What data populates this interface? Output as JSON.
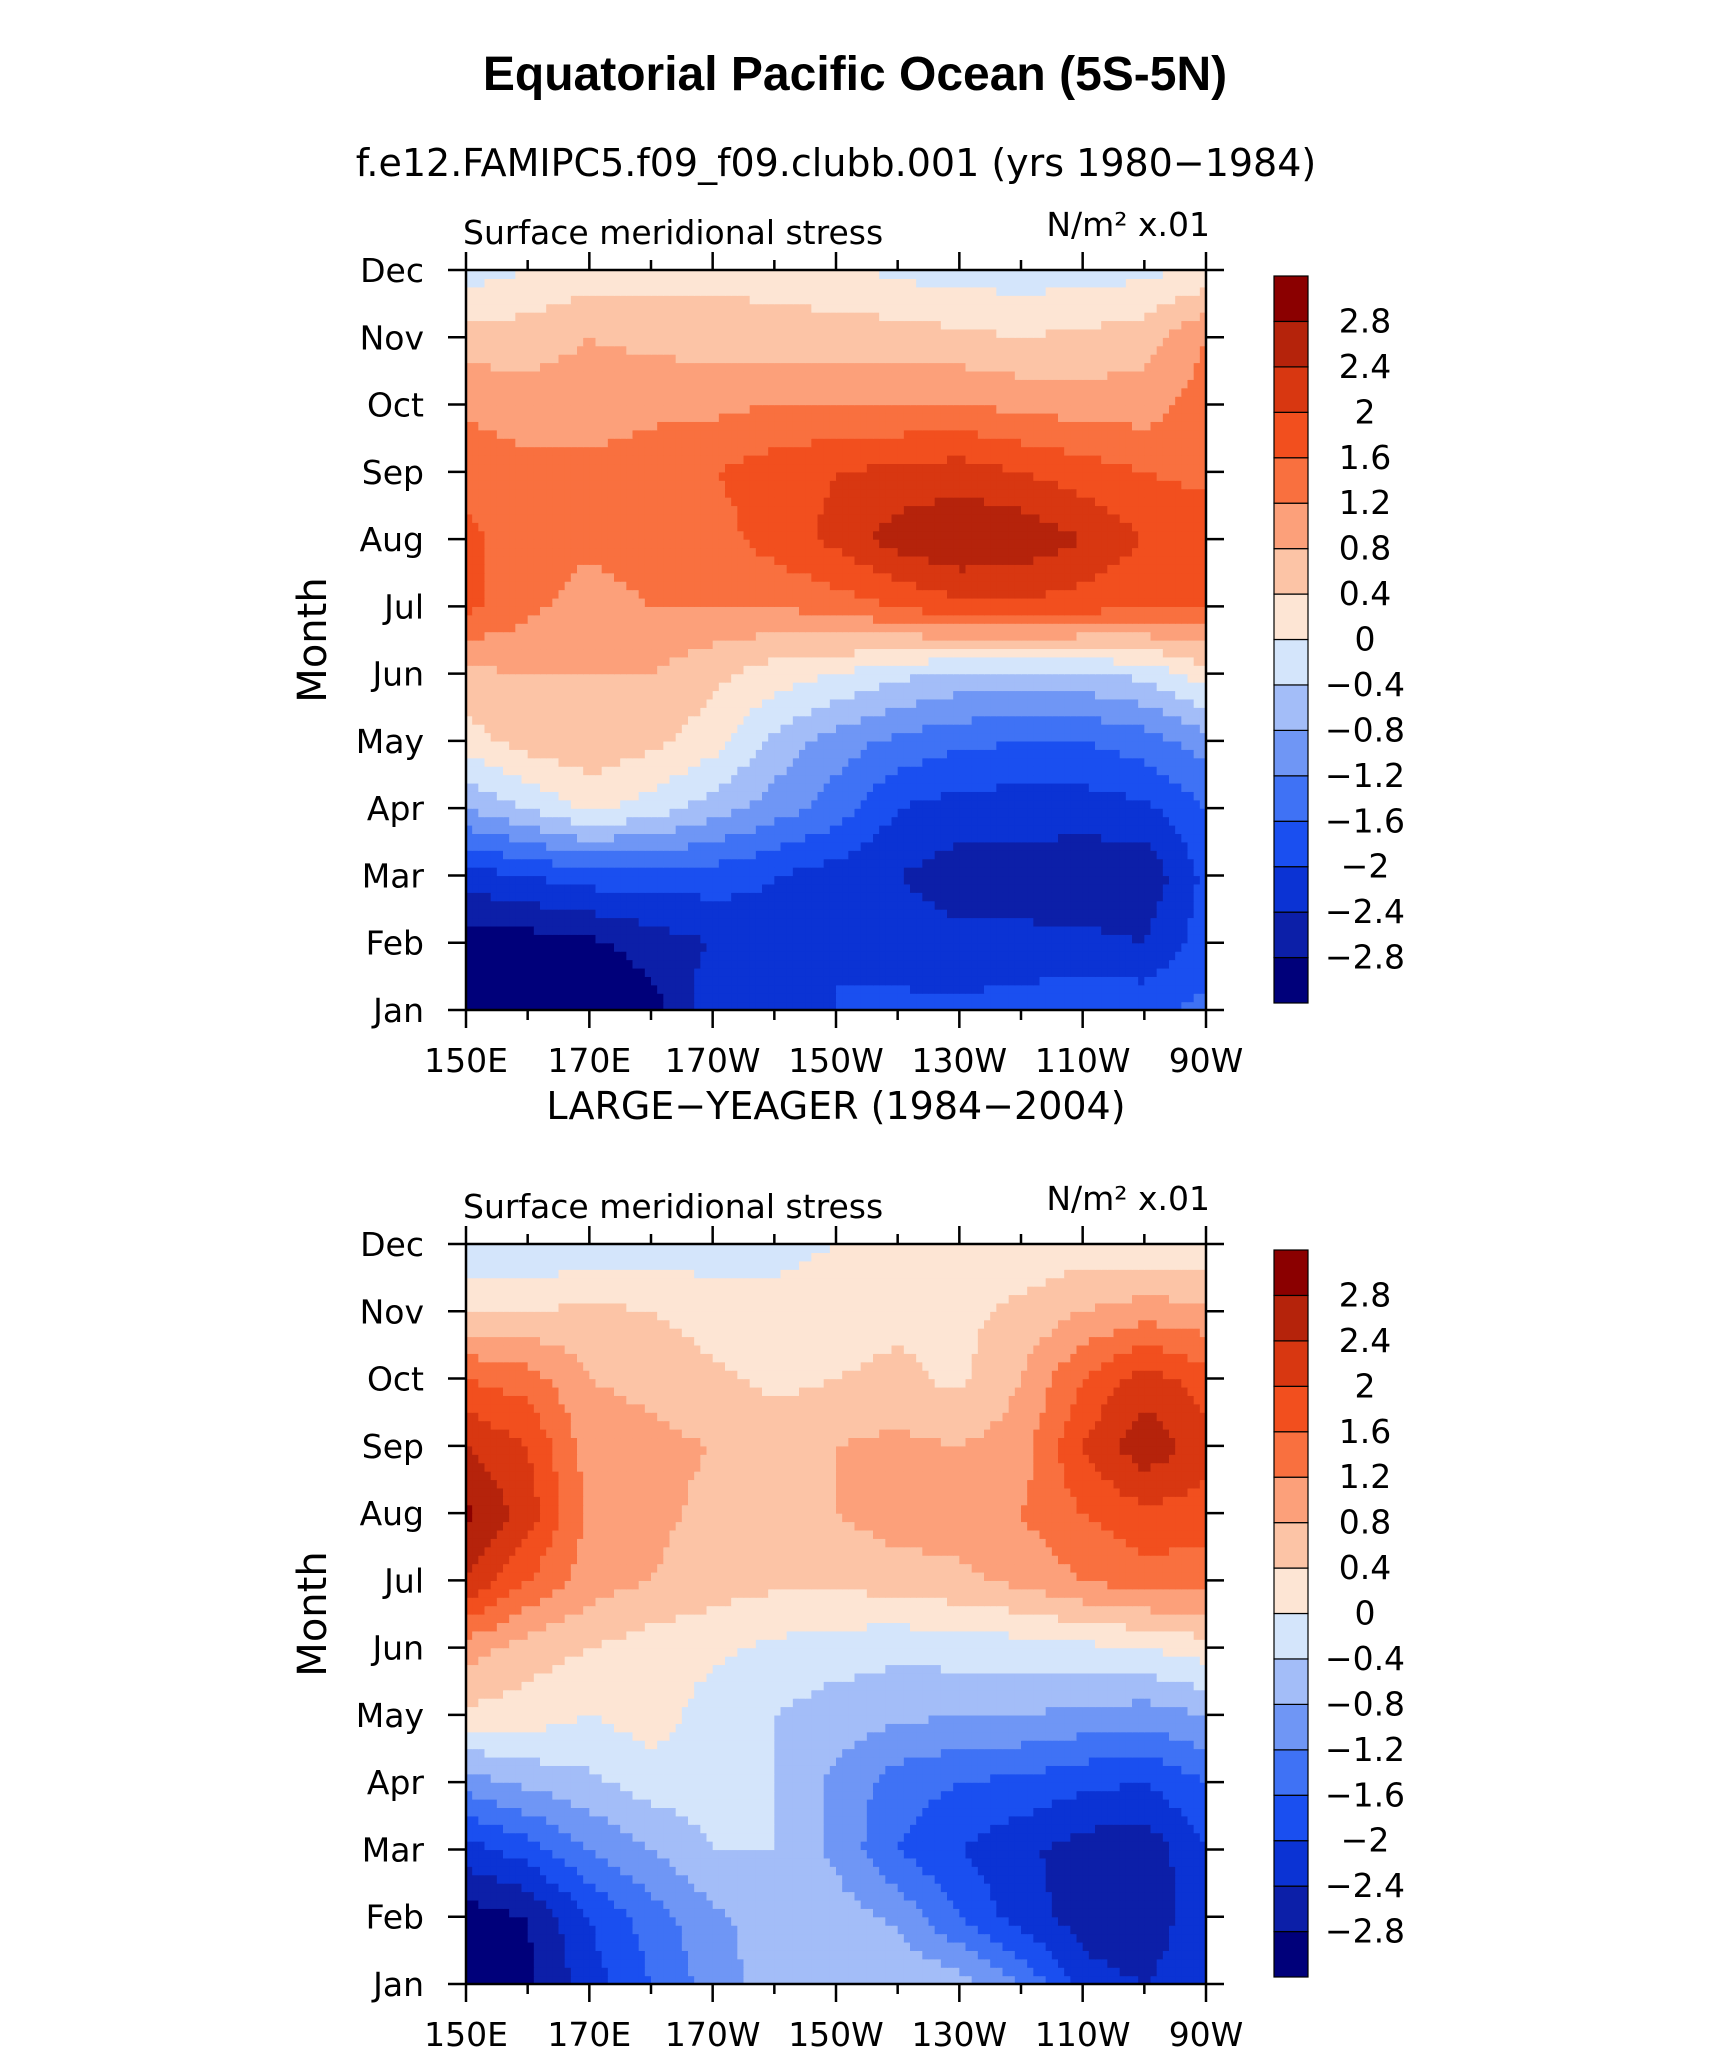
{
  "figure": {
    "title": "Equatorial Pacific Ocean (5S-5N)"
  },
  "palette": [
    "#00007a",
    "#0c1fa8",
    "#0b33d4",
    "#1a4ff0",
    "#3f72f5",
    "#6f96f5",
    "#a3bdf8",
    "#d4e5fb",
    "#fde5d4",
    "#fcc4a6",
    "#fca07a",
    "#f9703f",
    "#f24f1e",
    "#d83711",
    "#b5230b",
    "#8b0000"
  ],
  "chart_data": [
    {
      "type": "heatmap",
      "panel_title": "f.e12.FAMIPC5.f09_f09.clubb.001 (yrs 1980−1984)",
      "variable": "Surface meridional stress",
      "units": "N/m² x.01",
      "ylabel": "Month",
      "x_tick_labels": [
        "150E",
        "170E",
        "170W",
        "150W",
        "130W",
        "110W",
        "90W"
      ],
      "x_ticks_lon": [
        150,
        170,
        190,
        210,
        230,
        250,
        270
      ],
      "xlim_lon": [
        150,
        270
      ],
      "y_tick_labels": [
        "Jan",
        "Feb",
        "Mar",
        "Apr",
        "May",
        "Jun",
        "Jul",
        "Aug",
        "Sep",
        "Oct",
        "Nov",
        "Dec"
      ],
      "colorbar_labels": [
        "2.8",
        "2.4",
        "2",
        "1.6",
        "1.2",
        "0.8",
        "0.4",
        "0",
        "−0.4",
        "−0.8",
        "−1.2",
        "−1.6",
        "−2",
        "−2.4",
        "−2.8"
      ],
      "levels": [
        -2.8,
        -2.4,
        -2,
        -1.6,
        -1.2,
        -0.8,
        -0.4,
        0,
        0.4,
        0.8,
        1.2,
        1.6,
        2,
        2.4,
        2.8
      ],
      "grid_lon": [
        150,
        160,
        170,
        180,
        190,
        200,
        210,
        220,
        230,
        240,
        250,
        260,
        270
      ],
      "grid_months": [
        "Jan",
        "Feb",
        "Mar",
        "Apr",
        "May",
        "Jun",
        "Jul",
        "Aug",
        "Sep",
        "Oct",
        "Nov",
        "Dec"
      ],
      "values": [
        [
          -3.2,
          -3.2,
          -3.2,
          -3.0,
          -2.1,
          -2.0,
          -2.0,
          -1.9,
          -1.9,
          -1.8,
          -1.7,
          -1.7,
          -1.5
        ],
        [
          -3.0,
          -3.0,
          -2.9,
          -2.6,
          -2.4,
          -2.1,
          -2.0,
          -2.2,
          -2.3,
          -2.3,
          -2.3,
          -2.4,
          -1.8
        ],
        [
          -2.2,
          -2.0,
          -1.8,
          -1.8,
          -1.8,
          -2.0,
          -2.2,
          -2.4,
          -2.6,
          -2.6,
          -2.7,
          -2.7,
          -1.9
        ],
        [
          -0.8,
          -0.4,
          0.1,
          -0.2,
          -0.6,
          -1.0,
          -1.4,
          -2.0,
          -2.2,
          -2.2,
          -2.2,
          -2.1,
          -1.6
        ],
        [
          0.2,
          0.6,
          0.7,
          0.5,
          0.2,
          -0.5,
          -1.0,
          -1.3,
          -1.5,
          -1.6,
          -1.6,
          -1.4,
          -1.0
        ],
        [
          0.7,
          0.8,
          0.8,
          0.8,
          0.5,
          0.2,
          0.0,
          -0.3,
          -0.5,
          -0.5,
          -0.5,
          -0.3,
          0.2
        ],
        [
          1.7,
          1.3,
          1.0,
          1.2,
          1.2,
          1.2,
          1.4,
          1.6,
          1.9,
          1.9,
          1.8,
          1.6,
          1.6
        ],
        [
          1.7,
          1.4,
          1.3,
          1.4,
          1.4,
          1.8,
          2.1,
          2.6,
          2.8,
          2.7,
          2.4,
          2.0,
          1.8
        ],
        [
          1.5,
          1.3,
          1.3,
          1.4,
          1.6,
          1.8,
          2.0,
          2.1,
          2.2,
          2.0,
          1.8,
          1.6,
          1.5
        ],
        [
          1.1,
          1.0,
          1.0,
          1.1,
          1.1,
          1.2,
          1.2,
          1.2,
          1.2,
          1.1,
          1.0,
          1.0,
          1.4
        ],
        [
          0.6,
          0.6,
          0.8,
          0.7,
          0.6,
          0.6,
          0.6,
          0.6,
          0.5,
          0.4,
          0.5,
          0.6,
          1.2
        ],
        [
          -0.2,
          0.0,
          0.2,
          0.2,
          0.3,
          0.2,
          0.1,
          -0.1,
          -0.2,
          -0.2,
          -0.2,
          -0.1,
          0.1
        ]
      ]
    },
    {
      "type": "heatmap",
      "panel_title": "LARGE−YEAGER (1984−2004)",
      "variable": "Surface meridional stress",
      "units": "N/m² x.01",
      "ylabel": "Month",
      "x_tick_labels": [
        "150E",
        "170E",
        "170W",
        "150W",
        "130W",
        "110W",
        "90W"
      ],
      "x_ticks_lon": [
        150,
        170,
        190,
        210,
        230,
        250,
        270
      ],
      "xlim_lon": [
        150,
        270
      ],
      "y_tick_labels": [
        "Jan",
        "Feb",
        "Mar",
        "Apr",
        "May",
        "Jun",
        "Jul",
        "Aug",
        "Sep",
        "Oct",
        "Nov",
        "Dec"
      ],
      "colorbar_labels": [
        "2.8",
        "2.4",
        "2",
        "1.6",
        "1.2",
        "0.8",
        "0.4",
        "0",
        "−0.4",
        "−0.8",
        "−1.2",
        "−1.6",
        "−2",
        "−2.4",
        "−2.8"
      ],
      "levels": [
        -2.8,
        -2.4,
        -2,
        -1.6,
        -1.2,
        -0.8,
        -0.4,
        0,
        0.4,
        0.8,
        1.2,
        1.6,
        2,
        2.4,
        2.8
      ],
      "grid_lon": [
        150,
        160,
        170,
        180,
        190,
        200,
        210,
        220,
        230,
        240,
        250,
        260,
        270
      ],
      "grid_months": [
        "Jan",
        "Feb",
        "Mar",
        "Apr",
        "May",
        "Jun",
        "Jul",
        "Aug",
        "Sep",
        "Oct",
        "Nov",
        "Dec"
      ],
      "values": [
        [
          -3.0,
          -2.9,
          -2.2,
          -1.6,
          -1.0,
          -0.6,
          -0.4,
          -0.4,
          -0.6,
          -1.2,
          -2.2,
          -2.4,
          -2.0
        ],
        [
          -3.0,
          -2.8,
          -2.0,
          -1.4,
          -0.9,
          -0.6,
          -0.6,
          -0.9,
          -1.6,
          -2.2,
          -2.6,
          -2.8,
          -2.0
        ],
        [
          -2.2,
          -1.8,
          -1.2,
          -0.8,
          -0.4,
          -0.4,
          -0.9,
          -1.6,
          -2.0,
          -2.3,
          -2.6,
          -2.7,
          -2.0
        ],
        [
          -1.0,
          -0.7,
          -0.5,
          -0.2,
          -0.2,
          -0.4,
          -0.9,
          -1.4,
          -1.6,
          -1.7,
          -1.9,
          -2.0,
          -1.6
        ],
        [
          0.3,
          0.2,
          0.0,
          0.2,
          -0.2,
          -0.4,
          -0.6,
          -0.7,
          -0.8,
          -0.8,
          -0.9,
          -1.0,
          -0.8
        ],
        [
          1.0,
          0.6,
          0.4,
          0.2,
          0.1,
          -0.1,
          -0.2,
          -0.3,
          -0.2,
          -0.2,
          -0.1,
          0.0,
          0.2
        ],
        [
          2.4,
          1.6,
          1.0,
          0.8,
          0.6,
          0.5,
          0.5,
          0.6,
          0.7,
          0.9,
          1.2,
          1.4,
          1.4
        ],
        [
          2.9,
          2.2,
          1.1,
          0.9,
          0.7,
          0.6,
          0.8,
          1.0,
          1.0,
          1.2,
          1.6,
          1.9,
          1.8
        ],
        [
          2.4,
          2.0,
          1.0,
          0.9,
          0.8,
          0.6,
          0.8,
          0.9,
          0.8,
          1.0,
          2.0,
          2.7,
          2.2
        ],
        [
          1.6,
          1.4,
          0.8,
          0.7,
          0.5,
          0.3,
          0.4,
          0.5,
          0.3,
          0.8,
          1.6,
          2.2,
          1.8
        ],
        [
          0.4,
          0.4,
          0.5,
          0.4,
          0.2,
          0.1,
          0.2,
          0.3,
          0.3,
          0.5,
          0.8,
          1.0,
          0.9
        ],
        [
          -0.4,
          -0.4,
          -0.3,
          -0.2,
          -0.2,
          -0.1,
          0.0,
          0.2,
          0.1,
          0.1,
          0.2,
          0.1,
          0.1
        ]
      ]
    }
  ]
}
